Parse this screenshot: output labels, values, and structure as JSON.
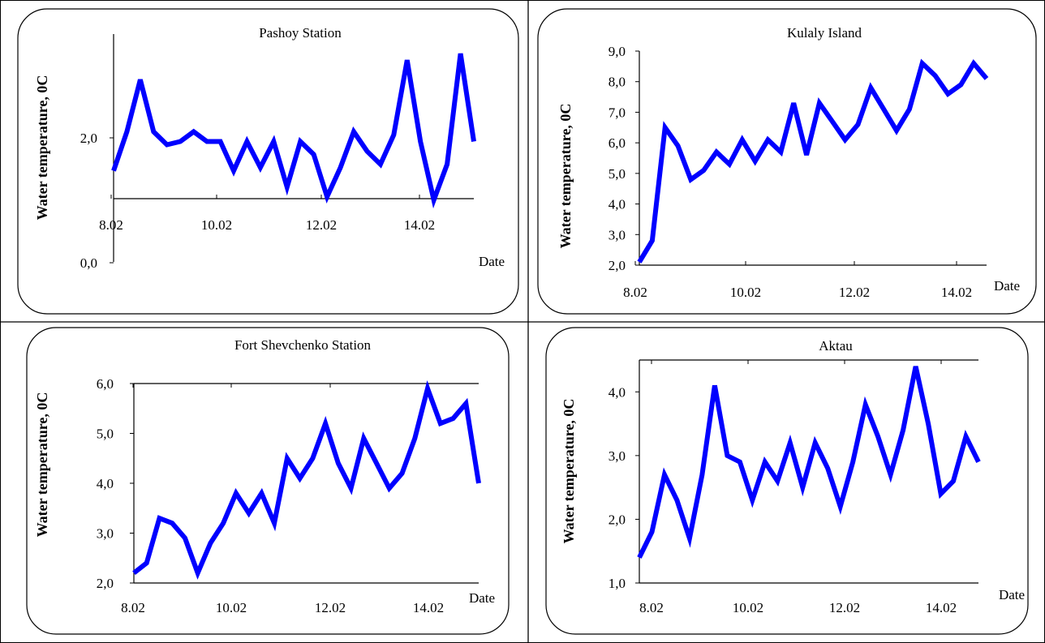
{
  "line_color": "#0000ff",
  "chart_data": [
    {
      "type": "line",
      "title": "Pashoy Station",
      "xlabel": "Date",
      "ylabel": "Water temperature, 0C",
      "x_tick_labels": [
        "8.02",
        "10.02",
        "12.02",
        "14.02"
      ],
      "y_tick_labels": [
        "0,0",
        "2,0"
      ],
      "x": [
        0,
        0.25,
        0.5,
        0.75,
        1,
        1.25,
        1.5,
        1.75,
        2,
        2.25,
        2.5,
        2.75,
        3,
        3.25,
        3.5,
        3.75,
        4,
        4.25,
        4.5,
        4.75,
        5,
        5.25,
        5.5,
        5.75,
        6,
        6.25,
        6.5,
        6.75
      ],
      "series": [
        {
          "values": [
            1.4,
            2.0,
            2.8,
            2.0,
            1.8,
            1.85,
            2.0,
            1.85,
            1.85,
            1.4,
            1.85,
            1.45,
            1.85,
            1.15,
            1.85,
            1.65,
            1.0,
            1.45,
            2.0,
            1.7,
            1.5,
            1.95,
            3.1,
            1.85,
            0.95,
            1.5,
            3.2,
            1.85
          ]
        }
      ]
    },
    {
      "type": "line",
      "title": "Kulaly  Island",
      "xlabel": "Date",
      "ylabel": "Water temperature, 0C",
      "x_tick_labels": [
        "8.02",
        "10.02",
        "12.02",
        "14.02"
      ],
      "y_tick_labels": [
        "2,0",
        "3,0",
        "4,0",
        "5,0",
        "6,0",
        "7,0",
        "8,0",
        "9,0"
      ],
      "ylim": [
        2,
        9
      ],
      "x": [
        0,
        0.25,
        0.5,
        0.75,
        1,
        1.25,
        1.5,
        1.75,
        2,
        2.25,
        2.5,
        2.75,
        3,
        3.25,
        3.5,
        3.75,
        4,
        4.25,
        4.5,
        4.75,
        5,
        5.25,
        5.5,
        5.75,
        6,
        6.25,
        6.5,
        6.75
      ],
      "series": [
        {
          "values": [
            2.1,
            2.8,
            6.5,
            5.9,
            4.8,
            5.1,
            5.7,
            5.3,
            6.1,
            5.4,
            6.1,
            5.7,
            7.3,
            5.6,
            7.3,
            6.7,
            6.1,
            6.6,
            7.8,
            7.1,
            6.4,
            7.1,
            8.6,
            8.2,
            7.6,
            7.9,
            8.6,
            8.1
          ]
        }
      ]
    },
    {
      "type": "line",
      "title": "Fort Shevchenko Station",
      "xlabel": "Date",
      "ylabel": "Water temperature, 0C",
      "x_tick_labels": [
        "8.02",
        "10.02",
        "12.02",
        "14.02"
      ],
      "y_tick_labels": [
        "2,0",
        "3,0",
        "4,0",
        "5,0",
        "6,0"
      ],
      "ylim": [
        2,
        6
      ],
      "x": [
        0,
        0.25,
        0.5,
        0.75,
        1,
        1.25,
        1.5,
        1.75,
        2,
        2.25,
        2.5,
        2.75,
        3,
        3.25,
        3.5,
        3.75,
        4,
        4.25,
        4.5,
        4.75,
        5,
        5.25,
        5.5,
        5.75,
        6,
        6.25,
        6.5,
        6.75
      ],
      "series": [
        {
          "values": [
            2.2,
            2.4,
            3.3,
            3.2,
            2.9,
            2.2,
            2.8,
            3.2,
            3.8,
            3.4,
            3.8,
            3.2,
            4.5,
            4.1,
            4.5,
            5.2,
            4.4,
            3.9,
            4.9,
            4.4,
            3.9,
            4.2,
            4.9,
            5.9,
            5.2,
            5.3,
            5.6,
            4.0
          ]
        }
      ]
    },
    {
      "type": "line",
      "title": "Aktau",
      "xlabel": "Date",
      "ylabel": "Water temperature, 0C",
      "x_tick_labels": [
        "8.02",
        "10.02",
        "12.02",
        "14.02"
      ],
      "y_tick_labels": [
        "1,0",
        "2,0",
        "3,0",
        "4,0"
      ],
      "ylim": [
        1,
        4.5
      ],
      "x": [
        0,
        0.25,
        0.5,
        0.75,
        1,
        1.25,
        1.5,
        1.75,
        2,
        2.25,
        2.5,
        2.75,
        3,
        3.25,
        3.5,
        3.75,
        4,
        4.25,
        4.5,
        4.75,
        5,
        5.25,
        5.5,
        5.75,
        6,
        6.25,
        6.5,
        6.75
      ],
      "series": [
        {
          "values": [
            1.4,
            1.8,
            2.7,
            2.3,
            1.7,
            2.7,
            4.1,
            3.0,
            2.9,
            2.3,
            2.9,
            2.6,
            3.2,
            2.5,
            3.2,
            2.8,
            2.2,
            2.9,
            3.8,
            3.3,
            2.7,
            3.4,
            4.4,
            3.5,
            2.4,
            2.6,
            3.3,
            2.9
          ]
        }
      ]
    }
  ]
}
